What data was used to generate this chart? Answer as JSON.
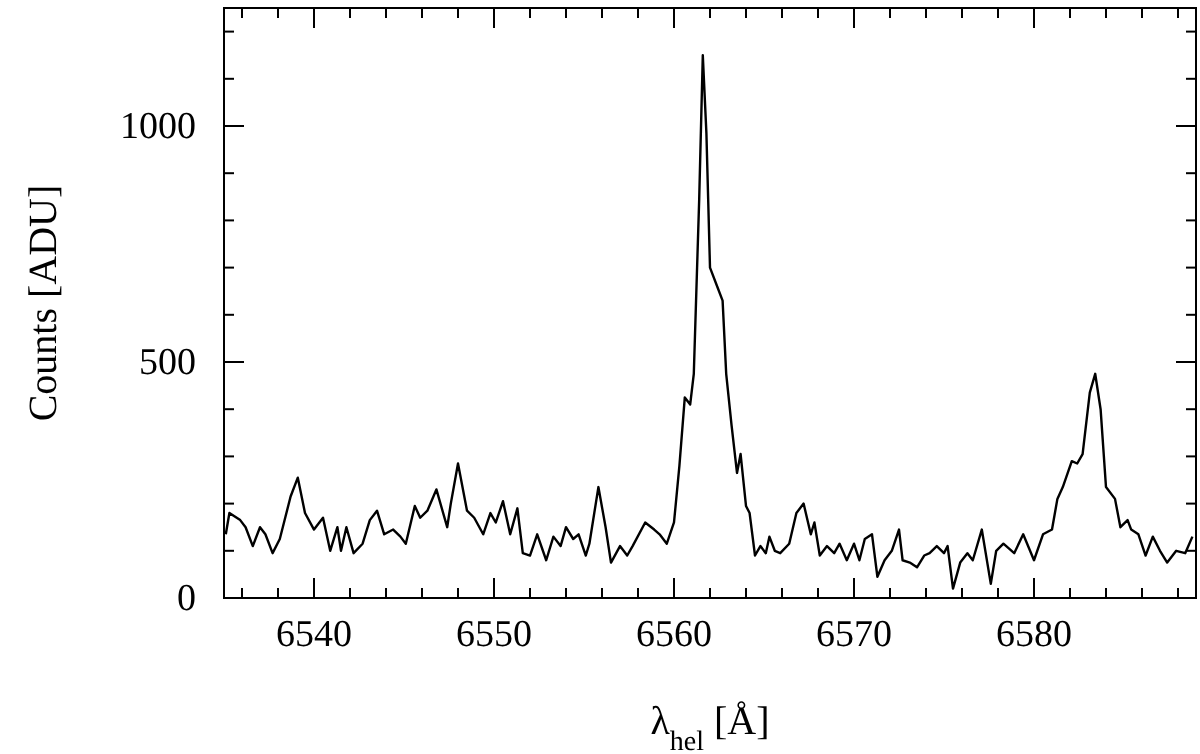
{
  "chart_data": {
    "type": "line",
    "xlabel": "λ$_{hel}$ [Å]",
    "ylabel": "Counts [ADU]",
    "xlim": [
      6535,
      6589
    ],
    "ylim": [
      0,
      1250
    ],
    "xticks": [
      {
        "value": 6536,
        "label": null
      },
      {
        "value": 6538,
        "label": null
      },
      6540,
      {
        "value": 6542,
        "label": null
      },
      {
        "value": 6544,
        "label": null
      },
      {
        "value": 6546,
        "label": null
      },
      {
        "value": 6548,
        "label": null
      },
      6550,
      {
        "value": 6552,
        "label": null
      },
      {
        "value": 6554,
        "label": null
      },
      {
        "value": 6556,
        "label": null
      },
      {
        "value": 6558,
        "label": null
      },
      6560,
      {
        "value": 6562,
        "label": null
      },
      {
        "value": 6564,
        "label": null
      },
      {
        "value": 6566,
        "label": null
      },
      {
        "value": 6568,
        "label": null
      },
      6570,
      {
        "value": 6572,
        "label": null
      },
      {
        "value": 6574,
        "label": null
      },
      {
        "value": 6576,
        "label": null
      },
      {
        "value": 6578,
        "label": null
      },
      6580,
      {
        "value": 6582,
        "label": null
      },
      {
        "value": 6584,
        "label": null
      },
      {
        "value": 6586,
        "label": null
      },
      {
        "value": 6588,
        "label": null
      }
    ],
    "yticks": [
      0,
      {
        "value": 100,
        "label": null
      },
      {
        "value": 200,
        "label": null
      },
      {
        "value": 300,
        "label": null
      },
      {
        "value": 400,
        "label": null
      },
      500,
      {
        "value": 600,
        "label": null
      },
      {
        "value": 700,
        "label": null
      },
      {
        "value": 800,
        "label": null
      },
      {
        "value": 900,
        "label": null
      },
      1000,
      {
        "value": 1100,
        "label": null
      },
      {
        "value": 1200,
        "label": null
      }
    ],
    "marker": "none",
    "line_style": "solid",
    "series": [
      {
        "color": "#000000",
        "x": [
          6535.1,
          6535.3,
          6535.9,
          6536.2,
          6536.6,
          6537.0,
          6537.3,
          6537.7,
          6538.1,
          6538.7,
          6539.1,
          6539.5,
          6540.0,
          6540.5,
          6540.9,
          6541.3,
          6541.5,
          6541.8,
          6542.2,
          6542.7,
          6543.1,
          6543.5,
          6543.9,
          6544.4,
          6544.8,
          6545.1,
          6545.6,
          6545.9,
          6546.3,
          6546.8,
          6547.4,
          6547.6,
          6548.0,
          6548.5,
          6548.9,
          6549.4,
          6549.8,
          6550.1,
          6550.5,
          6550.9,
          6551.3,
          6551.6,
          6552.0,
          6552.4,
          6552.9,
          6553.3,
          6553.7,
          6554.0,
          6554.4,
          6554.7,
          6555.1,
          6555.3,
          6555.8,
          6556.2,
          6556.5,
          6557.0,
          6557.4,
          6557.7,
          6558.4,
          6558.9,
          6559.2,
          6559.6,
          6560.0,
          6560.3,
          6560.6,
          6560.9,
          6561.1,
          6561.4,
          6561.6,
          6561.8,
          6562.0,
          6562.4,
          6562.7,
          6562.9,
          6563.2,
          6563.5,
          6563.7,
          6564.0,
          6564.2,
          6564.5,
          6564.8,
          6565.1,
          6565.3,
          6565.6,
          6565.9,
          6566.4,
          6566.8,
          6567.2,
          6567.6,
          6567.8,
          6568.1,
          6568.5,
          6568.9,
          6569.2,
          6569.6,
          6570.0,
          6570.3,
          6570.6,
          6571.0,
          6571.3,
          6571.7,
          6572.1,
          6572.5,
          6572.7,
          6573.1,
          6573.5,
          6573.9,
          6574.2,
          6574.6,
          6575.0,
          6575.2,
          6575.5,
          6575.9,
          6576.3,
          6576.6,
          6577.1,
          6577.6,
          6577.9,
          6578.3,
          6578.9,
          6579.4,
          6580.0,
          6580.5,
          6581.0,
          6581.3,
          6581.6,
          6582.1,
          6582.4,
          6582.7,
          6583.1,
          6583.4,
          6583.7,
          6584.0,
          6584.5,
          6584.8,
          6585.2,
          6585.4,
          6585.8,
          6586.2,
          6586.6,
          6587.0,
          6587.4,
          6587.9,
          6588.4,
          6588.8
        ],
        "values": [
          135,
          180,
          165,
          150,
          110,
          150,
          135,
          95,
          125,
          215,
          255,
          180,
          145,
          170,
          100,
          150,
          100,
          150,
          95,
          115,
          165,
          185,
          135,
          145,
          130,
          115,
          195,
          170,
          185,
          230,
          150,
          200,
          285,
          185,
          170,
          135,
          180,
          160,
          205,
          135,
          190,
          95,
          90,
          135,
          80,
          130,
          110,
          150,
          125,
          135,
          90,
          115,
          235,
          150,
          75,
          110,
          90,
          110,
          160,
          145,
          135,
          115,
          160,
          280,
          425,
          410,
          475,
          845,
          1150,
          985,
          700,
          660,
          630,
          475,
          365,
          265,
          305,
          195,
          180,
          90,
          110,
          95,
          130,
          100,
          95,
          115,
          180,
          200,
          135,
          160,
          90,
          110,
          95,
          115,
          80,
          115,
          80,
          125,
          135,
          45,
          80,
          100,
          145,
          80,
          75,
          65,
          90,
          95,
          110,
          95,
          110,
          20,
          75,
          95,
          80,
          145,
          30,
          100,
          115,
          95,
          135,
          80,
          135,
          145,
          210,
          235,
          290,
          285,
          305,
          435,
          475,
          400,
          235,
          210,
          150,
          165,
          145,
          135,
          90,
          130,
          100,
          75,
          100,
          95,
          130
        ]
      }
    ]
  }
}
